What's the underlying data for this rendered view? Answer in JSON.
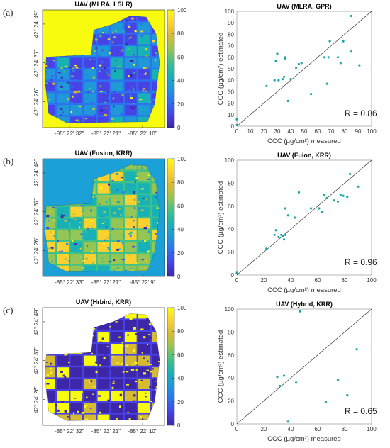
{
  "colors": {
    "parula": [
      "#3e26a8",
      "#4743e6",
      "#2d72f0",
      "#1f97d9",
      "#18b2b6",
      "#3fc18a",
      "#95c552",
      "#d6bb30",
      "#fcd12f",
      "#f9fb0e"
    ],
    "background_yellow": "#f9fb0e",
    "point": "#1aa6a6"
  },
  "panels": [
    {
      "letter": "(a)",
      "map": {
        "title": "UAV (MLRA, LSLR)",
        "y_ticks": [
          "42° 24' 49\"",
          "42° 24' 37\"",
          "42° 24' 26\""
        ],
        "x_ticks": [
          "-85° 22' 32\"",
          "-85° 22' 21\"",
          "-85° 22' 10\""
        ],
        "background": "yellow",
        "style": "a"
      },
      "colorbar": {
        "ticks": [
          "100",
          "80",
          "60",
          "40",
          "20",
          "0"
        ]
      },
      "scatter": {
        "title": "UAV (MLRA, GPR)",
        "x_ticks": [
          "0",
          "10",
          "20",
          "30",
          "40",
          "50",
          "60",
          "70",
          "80",
          "90",
          "100"
        ],
        "y_ticks": [
          "100",
          "90",
          "80",
          "70",
          "60",
          "50",
          "40",
          "30",
          "20",
          "10",
          "0"
        ],
        "xlabel": "CCC (µg/cm²) measured",
        "ylabel": "CCC (µg/cm²) estimated",
        "r_text": "R = 0.86"
      }
    },
    {
      "letter": "(b)",
      "map": {
        "title": "UAV (Fusion, KRR)",
        "y_ticks": [
          "42° 24' 49\"",
          "42° 24' 37\"",
          "42° 24' 26\""
        ],
        "x_ticks": [
          "-85° 22' 33\"",
          "-85° 22' 21\"",
          "-85° 22' 9\""
        ],
        "background": "cyan",
        "style": "b"
      },
      "colorbar": {
        "ticks": [
          "100",
          "80",
          "60",
          "40",
          "20",
          "0"
        ]
      },
      "scatter": {
        "title": "UAV (Fuion, KRR)",
        "x_ticks": [
          "0",
          "20",
          "40",
          "60",
          "80",
          "100"
        ],
        "y_ticks": [
          "100",
          "80",
          "60",
          "40",
          "20",
          "0"
        ],
        "xlabel": "CCC (µg/cm²) measured",
        "ylabel": "CCC (µg/cm²) estimated",
        "r_text": "R = 0.96"
      }
    },
    {
      "letter": "(c)",
      "map": {
        "title": "UAV (Hrbird, KRR)",
        "y_ticks": [
          "42° 24' 49\"",
          "42° 24' 37\"",
          "42° 24' 26\""
        ],
        "x_ticks": [
          "-85° 22' 32\"",
          "-85° 22' 21\"",
          "-85° 22' 10\""
        ],
        "background": "white",
        "style": "c"
      },
      "colorbar": {
        "ticks": [
          "100",
          "80",
          "60",
          "40",
          "20",
          "0"
        ]
      },
      "scatter": {
        "title": "UAV (Hybrid, KRR)",
        "x_ticks": [
          "0",
          "20",
          "40",
          "60",
          "80",
          "100"
        ],
        "y_ticks": [
          "100",
          "80",
          "60",
          "40",
          "20",
          "0"
        ],
        "xlabel": "CCC (µg/cm²) measured",
        "ylabel": "CCC (µg/cm²) estimated",
        "r_text": "R = 0.65"
      }
    }
  ],
  "chart_data": [
    {
      "type": "scatter",
      "title": "UAV (MLRA, GPR)",
      "xlabel": "CCC (µg/cm²) measured",
      "ylabel": "CCC (µg/cm²) estimated",
      "xlim": [
        0,
        100
      ],
      "ylim": [
        0,
        100
      ],
      "reference_line": "1:1",
      "annotation": "R = 0.86",
      "points": [
        [
          0,
          1
        ],
        [
          0,
          6
        ],
        [
          22,
          35
        ],
        [
          28,
          40
        ],
        [
          29,
          57
        ],
        [
          30,
          63
        ],
        [
          31,
          40
        ],
        [
          34,
          41
        ],
        [
          35,
          43
        ],
        [
          36,
          59
        ],
        [
          36,
          60
        ],
        [
          38,
          22
        ],
        [
          40,
          41
        ],
        [
          44,
          51
        ],
        [
          46,
          54
        ],
        [
          48,
          55
        ],
        [
          55,
          28
        ],
        [
          65,
          60
        ],
        [
          67,
          37
        ],
        [
          68,
          60
        ],
        [
          69,
          74
        ],
        [
          75,
          60
        ],
        [
          77,
          55
        ],
        [
          79,
          74
        ],
        [
          85,
          96
        ],
        [
          85,
          65
        ],
        [
          91,
          53
        ]
      ]
    },
    {
      "type": "scatter",
      "title": "UAV (Fuion, KRR)",
      "xlabel": "CCC (µg/cm²) measured",
      "ylabel": "CCC (µg/cm²) estimated",
      "xlim": [
        0,
        100
      ],
      "ylim": [
        0,
        100
      ],
      "reference_line": "1:1",
      "annotation": "R = 0.96",
      "points": [
        [
          0,
          2
        ],
        [
          22,
          23
        ],
        [
          28,
          35
        ],
        [
          29,
          39
        ],
        [
          31,
          33
        ],
        [
          33,
          35
        ],
        [
          34,
          34
        ],
        [
          35,
          31
        ],
        [
          36,
          58
        ],
        [
          36,
          35
        ],
        [
          38,
          52
        ],
        [
          43,
          50
        ],
        [
          46,
          72
        ],
        [
          55,
          58
        ],
        [
          61,
          58
        ],
        [
          63,
          55
        ],
        [
          65,
          70
        ],
        [
          67,
          67
        ],
        [
          72,
          65
        ],
        [
          75,
          64
        ],
        [
          77,
          70
        ],
        [
          79,
          69
        ],
        [
          82,
          68
        ],
        [
          84,
          88
        ],
        [
          90,
          77
        ]
      ]
    },
    {
      "type": "scatter",
      "title": "UAV (Hybrid, KRR)",
      "xlabel": "CCC (µg/cm²) measured",
      "ylabel": "CCC (µg/cm²) estimated",
      "xlim": [
        0,
        100
      ],
      "ylim": [
        0,
        100
      ],
      "reference_line": "1:1",
      "annotation": "R = 0.65",
      "points": [
        [
          30,
          41
        ],
        [
          32,
          33
        ],
        [
          35,
          42
        ],
        [
          38,
          2
        ],
        [
          44,
          36
        ],
        [
          47,
          98
        ],
        [
          66,
          19
        ],
        [
          75,
          38
        ],
        [
          82,
          25
        ],
        [
          89,
          65
        ]
      ]
    }
  ]
}
